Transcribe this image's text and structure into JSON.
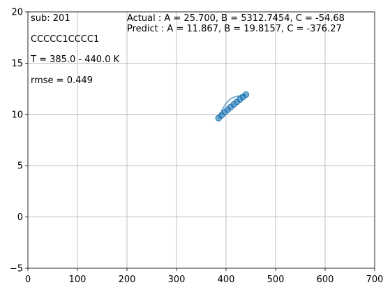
{
  "chart_data": {
    "type": "scatter",
    "title": "",
    "xlabel": "",
    "ylabel": "",
    "xlim": [
      0,
      700
    ],
    "ylim": [
      -5,
      20
    ],
    "xticks": [
      0,
      100,
      200,
      300,
      400,
      500,
      600,
      700
    ],
    "yticks": [
      -5,
      0,
      5,
      10,
      15,
      20
    ],
    "grid": true,
    "colors": {
      "points": "#1f77b4",
      "curve": "#1f77b4",
      "grid": "#b0b0b0"
    },
    "annotations": {
      "sub": " sub: 201",
      "smiles": "CCCCC1CCCC1",
      "temp_range": "T = 385.0 - 440.0 K",
      "rmse": "rmse = 0.449",
      "actual": "Actual  : A = 25.700, B = 5312.7454,  C = -54.68",
      "predict": "Predict : A = 11.867, B = 19.8157,  C = -376.27"
    },
    "series": [
      {
        "kind": "points",
        "x": [
          385.0,
          391.1,
          397.2,
          403.3,
          409.4,
          415.6,
          421.7,
          427.8,
          433.9,
          440.0
        ],
        "y": [
          9.64,
          9.92,
          10.2,
          10.46,
          10.72,
          10.98,
          11.22,
          11.46,
          11.7,
          11.93
        ]
      },
      {
        "kind": "curve",
        "x": [
          385,
          392,
          400,
          410,
          420,
          430,
          440
        ],
        "y": [
          9.6,
          10.45,
          11.1,
          11.55,
          11.75,
          11.85,
          11.9
        ]
      }
    ]
  }
}
